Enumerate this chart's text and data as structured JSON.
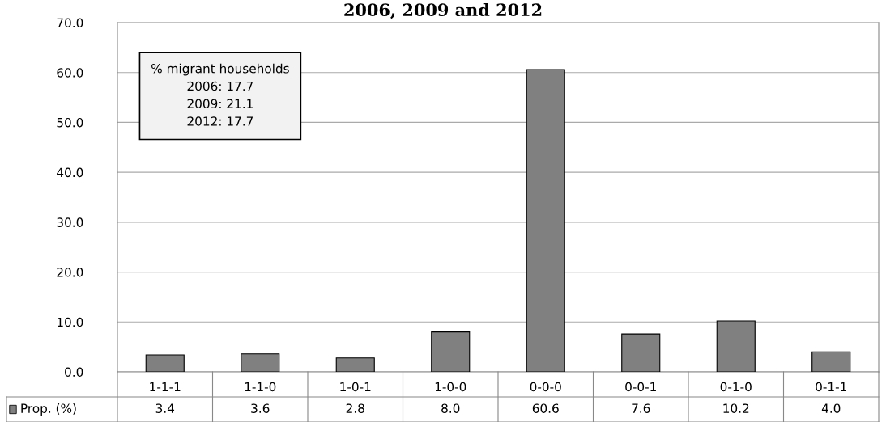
{
  "chart_data": {
    "type": "bar",
    "title": "2006, 2009 and 2012",
    "categories": [
      "1-1-1",
      "1-1-0",
      "1-0-1",
      "1-0-0",
      "0-0-0",
      "0-0-1",
      "0-1-0",
      "0-1-1"
    ],
    "series": [
      {
        "name": "Prop. (%)",
        "color": "#808080",
        "values": [
          3.4,
          3.6,
          2.8,
          8.0,
          60.6,
          7.6,
          10.2,
          4.0
        ],
        "value_labels": [
          "3.4",
          "3.6",
          "2.8",
          "8.0",
          "60.6",
          "7.6",
          "10.2",
          "4.0"
        ]
      }
    ],
    "ylim": [
      0,
      70
    ],
    "yticks": [
      {
        "value": 0,
        "label": "0.0"
      },
      {
        "value": 10,
        "label": "10.0"
      },
      {
        "value": 20,
        "label": "20.0"
      },
      {
        "value": 30,
        "label": "30.0"
      },
      {
        "value": 40,
        "label": "40.0"
      },
      {
        "value": 50,
        "label": "50.0"
      },
      {
        "value": 60,
        "label": "60.0"
      },
      {
        "value": 70,
        "label": "70.0"
      }
    ],
    "grid": "y",
    "legend": "bottom left",
    "annotations": [
      "% migrant households\n2006: 17.7\n2009: 21.1\n2012: 17.7"
    ]
  }
}
